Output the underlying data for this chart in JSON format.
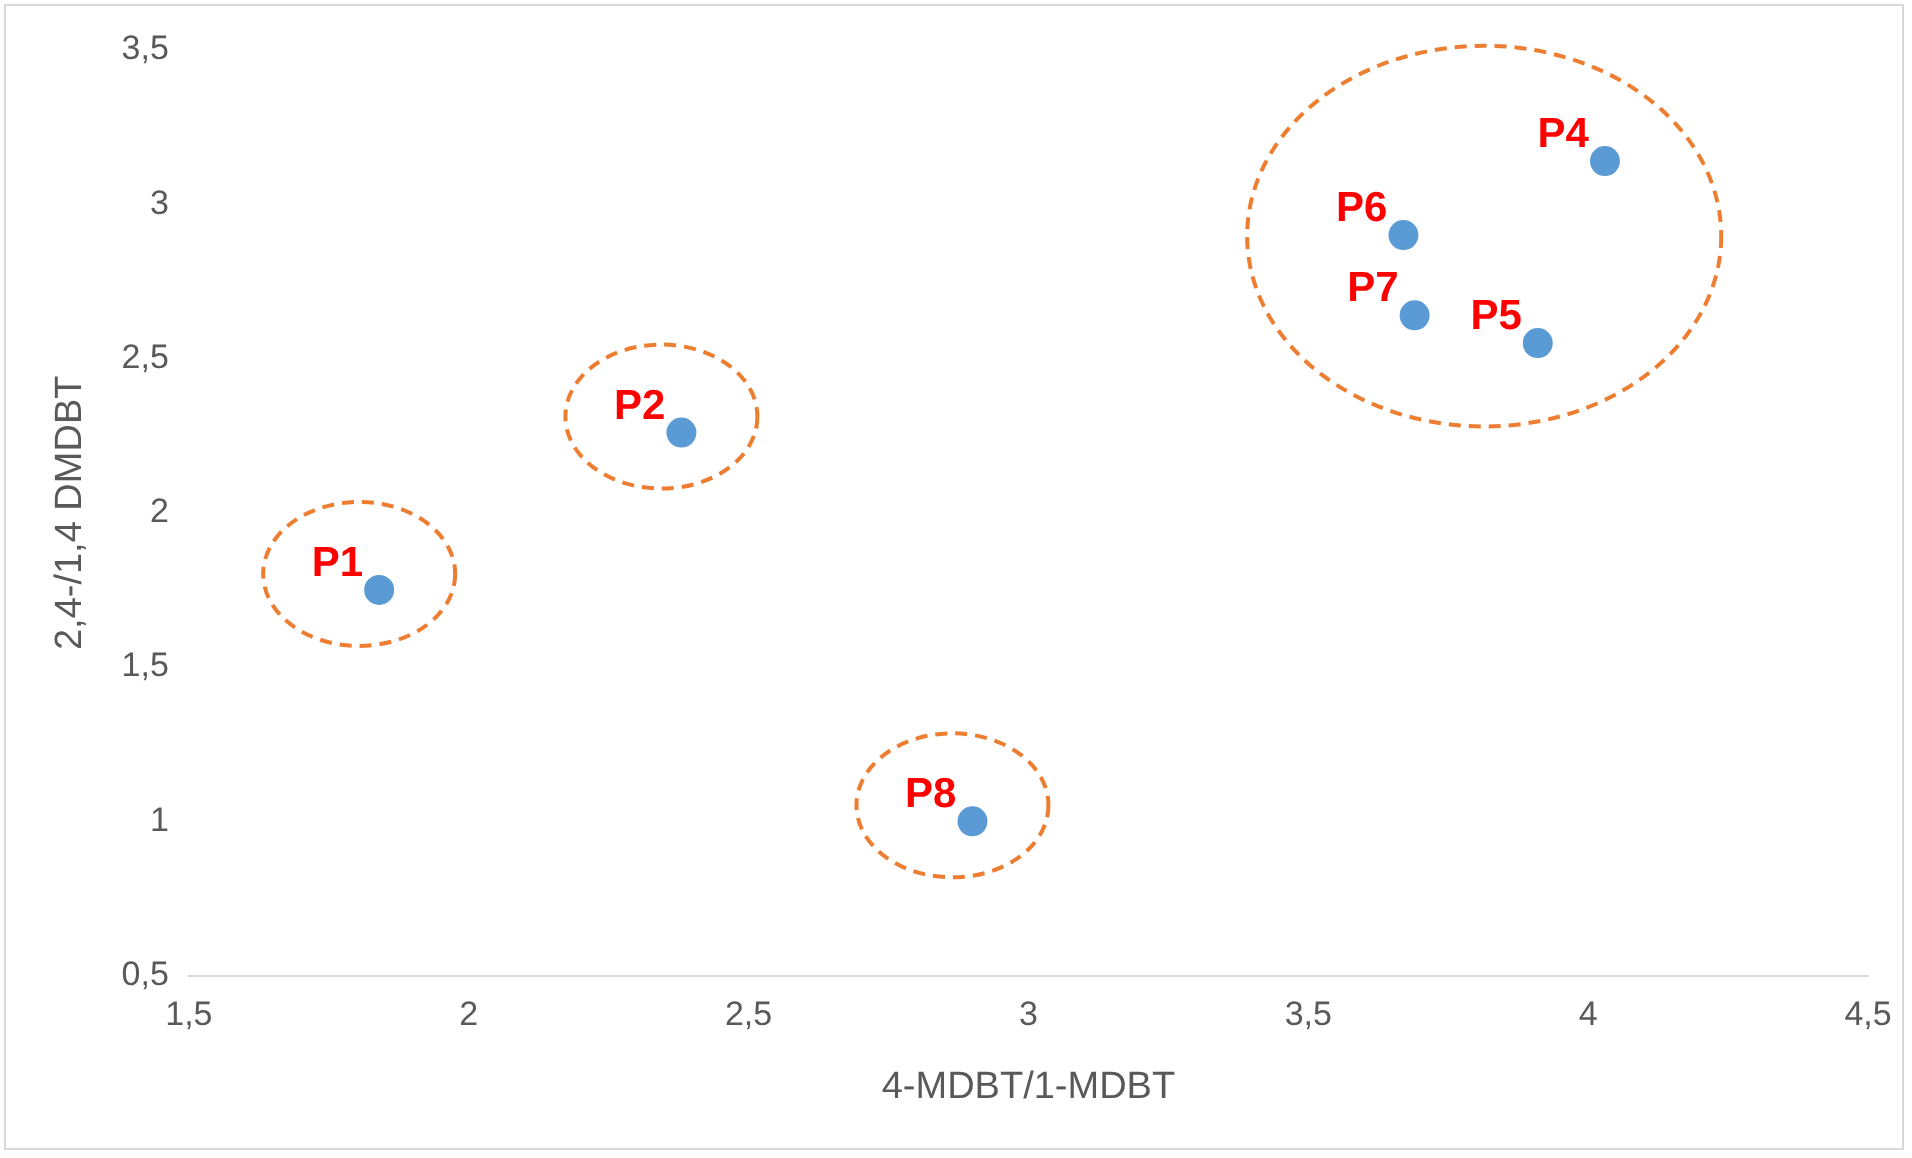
{
  "chart_data": {
    "type": "scatter",
    "xlabel": "4-MDBT/1-MDBT",
    "ylabel": "2,4-/1,4 DMDBT",
    "x": [
      1.84,
      2.38,
      2.9,
      4.03,
      3.91,
      3.67,
      3.69
    ],
    "series": [
      {
        "color": "#5b9bd5",
        "values": [
          1.75,
          2.26,
          1.0,
          3.14,
          2.55,
          2.9,
          2.64
        ]
      }
    ],
    "xlim": [
      1.5,
      4.5
    ],
    "ylim": [
      0.5,
      3.5
    ],
    "xticks": [
      {
        "value": 1.5,
        "label": "1,5"
      },
      2,
      {
        "value": 2.5,
        "label": "2,5"
      },
      3,
      {
        "value": 3.5,
        "label": "3,5"
      },
      4,
      {
        "value": 4.5,
        "label": "4,5"
      }
    ],
    "yticks": [
      {
        "value": 0.5,
        "label": "0,5"
      },
      1,
      {
        "value": 1.5,
        "label": "1,5"
      },
      2,
      {
        "value": 2.5,
        "label": "2,5"
      },
      3,
      {
        "value": 3.5,
        "label": "3,5"
      }
    ],
    "grid": false,
    "legend": false,
    "marker": "circle",
    "annotations": [
      {
        "text": "P1",
        "x": 1.84,
        "y": 1.75
      },
      {
        "text": "P2",
        "x": 2.38,
        "y": 2.26
      },
      {
        "text": "P8",
        "x": 2.9,
        "y": 1.0
      },
      {
        "text": "P4",
        "x": 4.03,
        "y": 3.14
      },
      {
        "text": "P5",
        "x": 3.91,
        "y": 2.55
      },
      {
        "text": "P6",
        "x": 3.67,
        "y": 2.9
      },
      {
        "text": "P7",
        "x": 3.69,
        "y": 2.64
      }
    ]
  }
}
